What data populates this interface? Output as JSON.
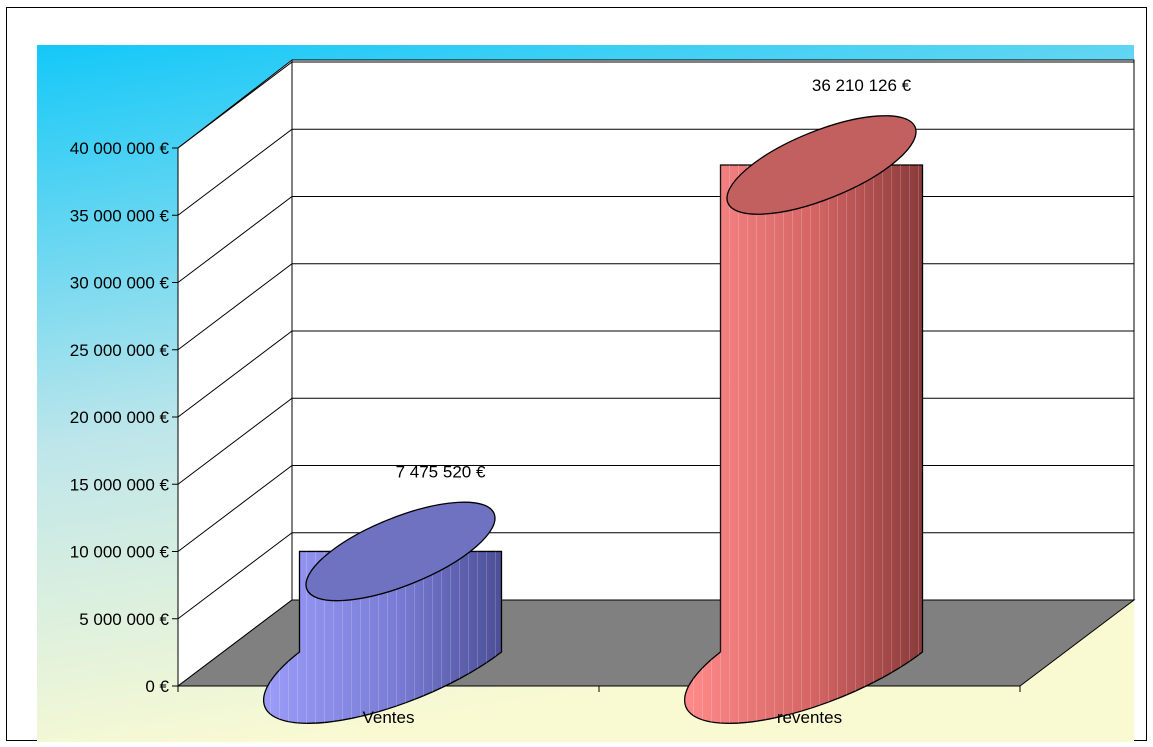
{
  "chart_data": {
    "type": "bar",
    "categories": [
      "Ventes",
      "reventes"
    ],
    "values": [
      7475520,
      36210126
    ],
    "data_labels": [
      "7 475 520 €",
      "36 210 126 €"
    ],
    "y_ticks": [
      0,
      5000000,
      10000000,
      15000000,
      20000000,
      25000000,
      30000000,
      35000000,
      40000000
    ],
    "y_tick_labels": [
      "0 €",
      "5 000 000 €",
      "10 000 000 €",
      "15 000 000 €",
      "20 000 000 €",
      "25 000 000 €",
      "30 000 000 €",
      "35 000 000 €",
      "40 000 000 €"
    ],
    "ylim": [
      0,
      40000000
    ],
    "title": "",
    "xlabel": "",
    "ylabel": "",
    "grid": true,
    "legend": "none",
    "style": "3d-cylinder",
    "colors": {
      "series": [
        "#7b7fd6",
        "#d96a6a"
      ],
      "background_top": "#14c8f8",
      "background_bottom": "#fafad2",
      "floor": "#808080",
      "walls": "#ffffff"
    }
  }
}
